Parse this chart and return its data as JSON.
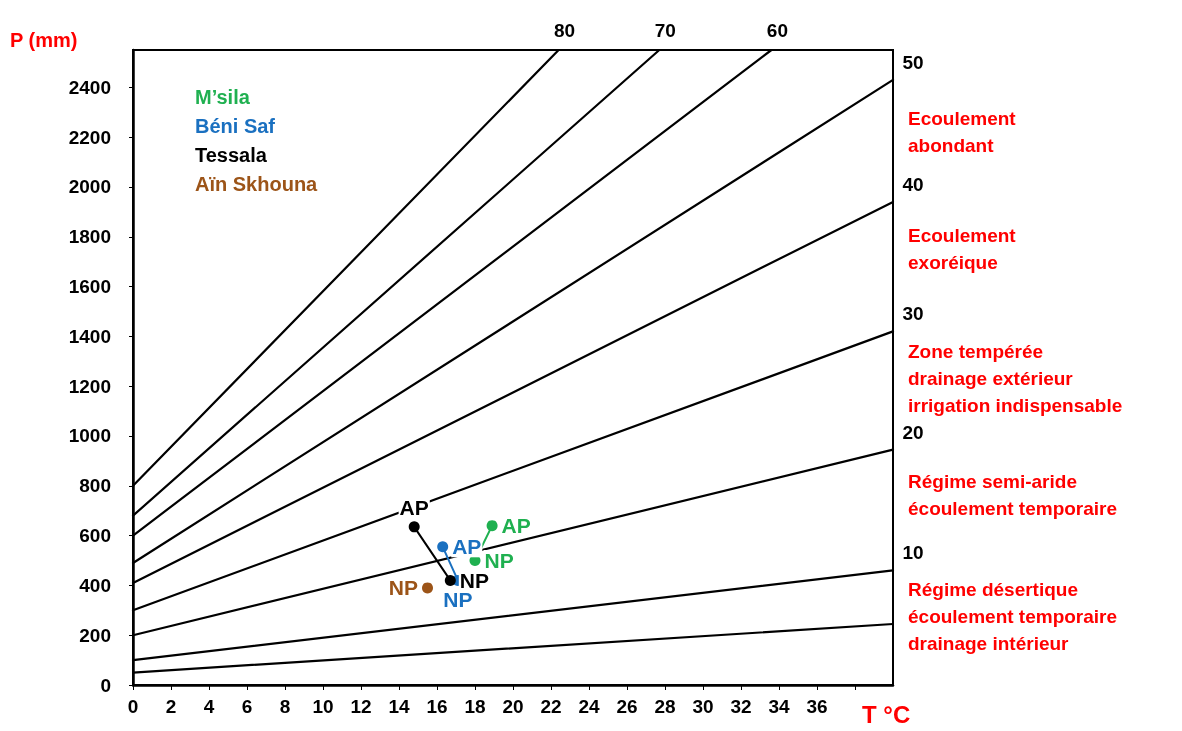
{
  "chart_data": {
    "type": "line",
    "xlabel": "T °C",
    "ylabel": "P (mm)",
    "xlim": [
      0,
      40
    ],
    "xticks": [
      0,
      2,
      4,
      6,
      8,
      10,
      12,
      14,
      16,
      18,
      20,
      22,
      24,
      26,
      28,
      30,
      32,
      34,
      36,
      {
        "value": 38,
        "label": null
      }
    ],
    "ylim": [
      0,
      2550
    ],
    "yticks": [
      0,
      200,
      400,
      600,
      800,
      1000,
      1200,
      1400,
      1600,
      1800,
      2000,
      2200,
      2400
    ],
    "grid": false,
    "legend": "top left",
    "marker": "circle",
    "line_style": "solid",
    "series": [
      {
        "color": "#000000",
        "marker": "none",
        "x": [
          0,
          22.4
        ],
        "values": [
          800,
          2550
        ]
      },
      {
        "color": "#000000",
        "marker": "none",
        "x": [
          0,
          27.7
        ],
        "values": [
          680,
          2550
        ]
      },
      {
        "color": "#000000",
        "marker": "none",
        "x": [
          0,
          33.6
        ],
        "values": [
          600,
          2550
        ]
      },
      {
        "color": "#000000",
        "marker": "none",
        "x": [
          0,
          40
        ],
        "values": [
          490,
          2430
        ]
      },
      {
        "color": "#000000",
        "marker": "none",
        "x": [
          0,
          40
        ],
        "values": [
          410,
          1940
        ]
      },
      {
        "color": "#000000",
        "marker": "none",
        "x": [
          0,
          40
        ],
        "values": [
          300,
          1420
        ]
      },
      {
        "color": "#000000",
        "marker": "none",
        "x": [
          0,
          40
        ],
        "values": [
          200,
          945
        ]
      },
      {
        "color": "#000000",
        "marker": "none",
        "x": [
          0,
          40
        ],
        "values": [
          100,
          460
        ]
      },
      {
        "color": "#000000",
        "marker": "none",
        "x": [
          0,
          40
        ],
        "values": [
          50,
          245
        ]
      },
      {
        "name": "M’sila",
        "color": "#1fb050",
        "x": [
          18.9,
          18.0
        ],
        "values": [
          640,
          500
        ],
        "value_labels": [
          "AP",
          "NP"
        ]
      },
      {
        "name": "Béni Saf",
        "color": "#1a70c0",
        "x": [
          16.3,
          17.1
        ],
        "values": [
          555,
          420
        ],
        "value_labels": [
          "AP",
          "NP"
        ]
      },
      {
        "name": "Tessala",
        "color": "#000000",
        "x": [
          14.8,
          16.7
        ],
        "values": [
          635,
          420
        ],
        "value_labels": [
          "AP",
          "NP"
        ]
      },
      {
        "name": "Aïn Skhouna",
        "color": "#9c5418",
        "x": [
          15.5
        ],
        "values": [
          390
        ],
        "value_labels": [
          "NP"
        ]
      }
    ],
    "annotations": [
      {
        "text": "80",
        "x": 22.4,
        "y": 2550
      },
      {
        "text": "70",
        "x": 27.7,
        "y": 2550
      },
      {
        "text": "60",
        "x": 33.6,
        "y": 2550
      },
      {
        "text": "50",
        "x": 40,
        "y": 2430
      },
      {
        "text": "40",
        "x": 40,
        "y": 1940
      },
      {
        "text": "30",
        "x": 40,
        "y": 1420
      },
      {
        "text": "20",
        "x": 40,
        "y": 945
      },
      {
        "text": "10",
        "x": 40,
        "y": 460
      },
      "Ecoulement\nabondant",
      "Ecoulement\nexoréique",
      "Zone tempérée\ndrainage extérieur\nirrigation indispensable",
      "Régime semi-aride\nécoulement temporaire",
      "Régime désertique\nécoulement temporaire\ndrainage intérieur"
    ]
  }
}
